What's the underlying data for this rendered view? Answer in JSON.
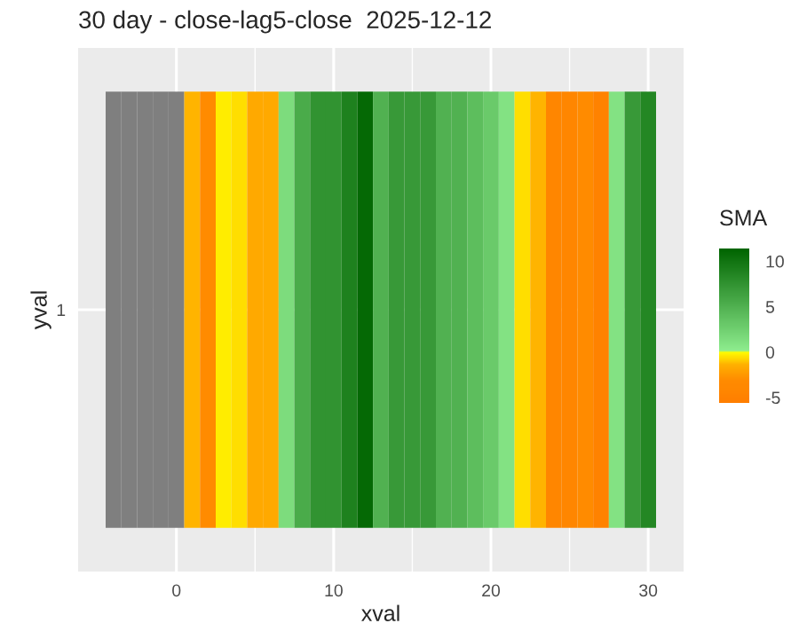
{
  "chart_data": {
    "type": "heatmap",
    "title": "30 day - close-lag5-close  2025-12-12",
    "xlabel": "xval",
    "ylabel": "yval",
    "clabel": "SMA",
    "x": [
      -4,
      -3,
      -2,
      -1,
      0,
      1,
      2,
      3,
      4,
      5,
      6,
      7,
      8,
      9,
      10,
      11,
      12,
      13,
      14,
      15,
      16,
      17,
      18,
      19,
      20,
      21,
      22,
      23,
      24,
      25,
      26,
      27,
      28,
      29,
      30
    ],
    "y_categories": [
      "1"
    ],
    "cells": [
      [
        null,
        null,
        null,
        null,
        null,
        -1.3,
        -3.2,
        -0.3,
        -0.6,
        -1.7,
        -1.7,
        1.5,
        5.5,
        7.5,
        7.5,
        9,
        11,
        5,
        7,
        7,
        7,
        5,
        5,
        4,
        3,
        1,
        -0.6,
        -1.3,
        -4.2,
        -4.2,
        -3.2,
        -5,
        1,
        7,
        8.5
      ]
    ],
    "clim": [
      -5.6,
      11.4
    ],
    "cticks": [
      -5,
      0,
      5,
      10
    ],
    "xlim": [
      -6.25,
      32.25
    ],
    "xticks": [
      0,
      10,
      20,
      30
    ],
    "grid": true
  }
}
